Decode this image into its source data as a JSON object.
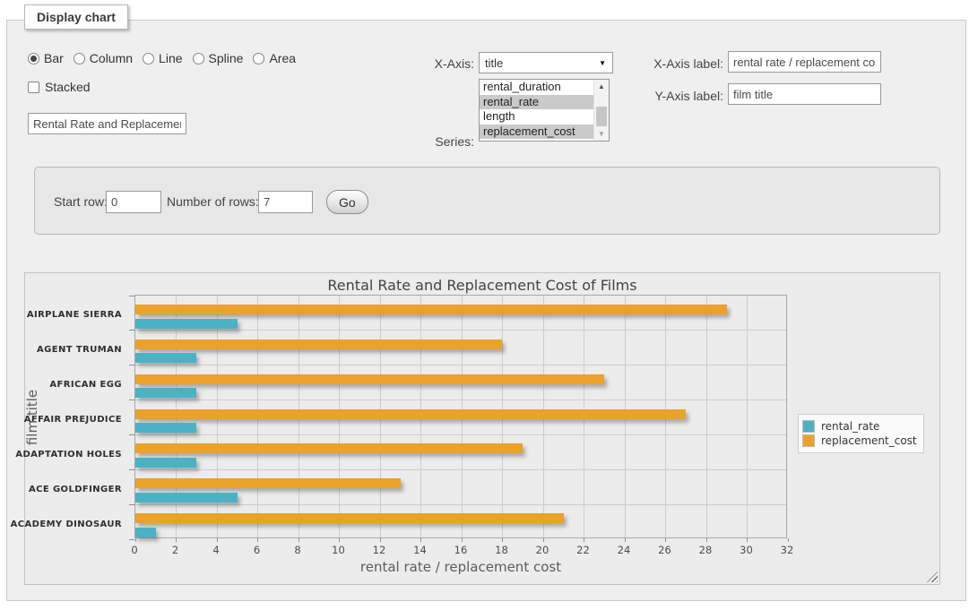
{
  "page": {
    "legend_title": "Display chart"
  },
  "chart_controls": {
    "type_options": [
      {
        "label": "Bar",
        "selected": true
      },
      {
        "label": "Column",
        "selected": false
      },
      {
        "label": "Line",
        "selected": false
      },
      {
        "label": "Spline",
        "selected": false
      },
      {
        "label": "Area",
        "selected": false
      }
    ],
    "stacked": {
      "label": "Stacked",
      "checked": false
    },
    "chart_title_input": "Rental Rate and Replacement Cost of Films",
    "x_axis": {
      "label": "X-Axis:",
      "selected": "title"
    },
    "series_select": {
      "label": "Series:",
      "options": [
        {
          "text": "rental_duration",
          "selected": false
        },
        {
          "text": "rental_rate",
          "selected": true
        },
        {
          "text": "length",
          "selected": false
        },
        {
          "text": "replacement_cost",
          "selected": true
        }
      ]
    },
    "x_axis_label": {
      "label": "X-Axis label:",
      "value": "rental rate / replacement cost"
    },
    "y_axis_label": {
      "label": "Y-Axis label:",
      "value": "film title"
    }
  },
  "row_controls": {
    "start_row": {
      "label": "Start row:",
      "value": "0"
    },
    "number_of_rows": {
      "label": "Number of rows:",
      "value": "7"
    },
    "go_button": "Go"
  },
  "chart_data": {
    "type": "bar",
    "orientation": "horizontal",
    "title": "Rental Rate and Replacement Cost of Films",
    "xlabel": "rental rate / replacement cost",
    "ylabel": "film title",
    "categories": [
      "AIRPLANE SIERRA",
      "AGENT TRUMAN",
      "AFRICAN EGG",
      "AFFAIR PREJUDICE",
      "ADAPTATION HOLES",
      "ACE GOLDFINGER",
      "ACADEMY DINOSAUR"
    ],
    "series": [
      {
        "name": "rental_rate",
        "color": "#4bb2c5",
        "values": [
          4.99,
          2.99,
          2.99,
          2.99,
          2.99,
          4.99,
          0.99
        ]
      },
      {
        "name": "replacement_cost",
        "color": "#eaa228",
        "values": [
          28.99,
          17.99,
          22.99,
          26.99,
          18.99,
          12.99,
          20.99
        ]
      }
    ],
    "xlim": [
      0,
      32
    ],
    "xtick_step": 2,
    "grid": true,
    "legend_position": "right",
    "bar_order_top_to_bottom": [
      "replacement_cost",
      "rental_rate"
    ]
  }
}
